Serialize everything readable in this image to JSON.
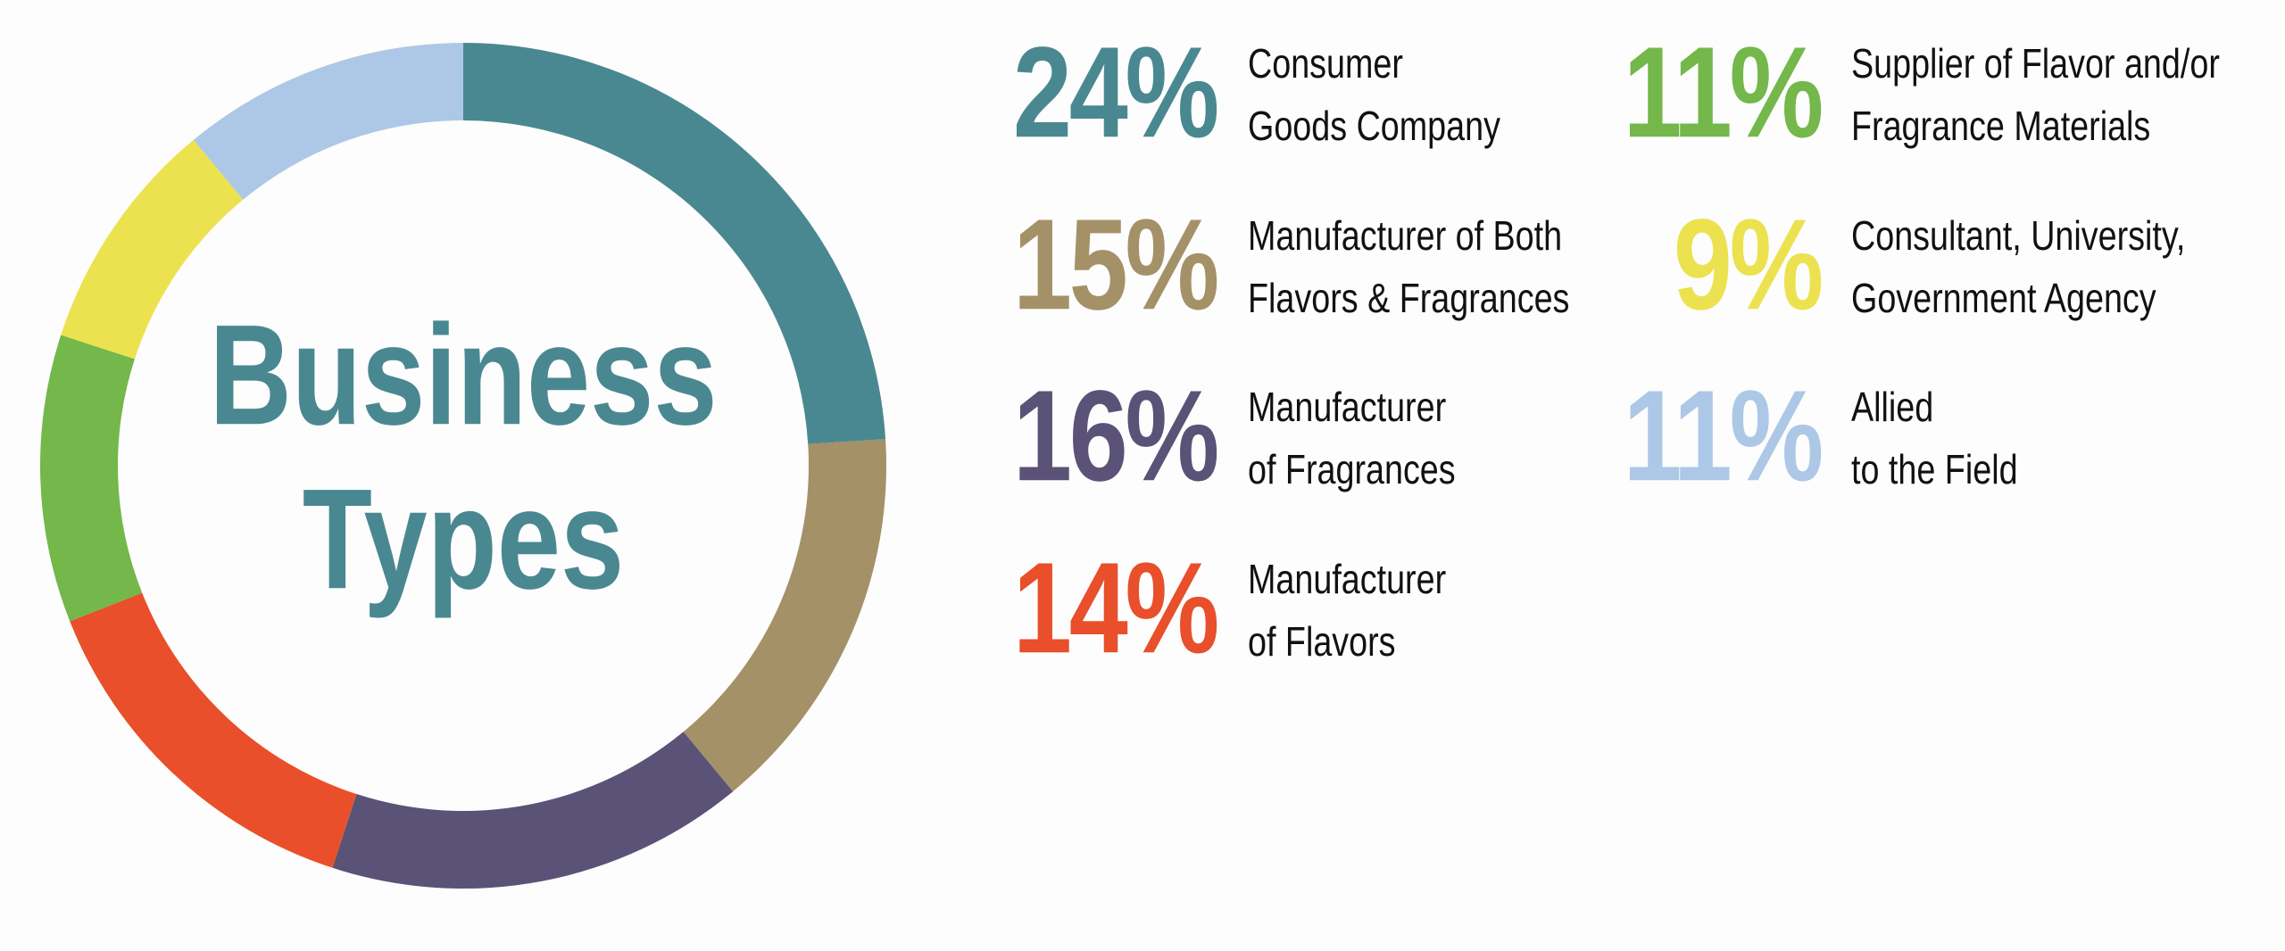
{
  "chart_data": {
    "type": "donut",
    "title": [
      "Business",
      "Types"
    ],
    "title_color": "#4a8891",
    "categories": [
      [
        "Consumer",
        "Goods Company"
      ],
      [
        "Manufacturer of Both",
        "Flavors & Fragrances"
      ],
      [
        "Manufacturer",
        "of Fragrances"
      ],
      [
        "Manufacturer",
        "of Flavors"
      ],
      [
        "Supplier of Flavor and/or",
        "Fragrance Materials"
      ],
      [
        "Consultant, University,",
        "Government Agency"
      ],
      [
        "Allied",
        "to the Field"
      ]
    ],
    "values": [
      24,
      15,
      16,
      14,
      11,
      9,
      11
    ],
    "value_labels": [
      "24%",
      "15%",
      "16%",
      "14%",
      "11%",
      "9%",
      "11%"
    ],
    "colors": [
      "#4a8891",
      "#a49168",
      "#5a5277",
      "#e84f2a",
      "#74b74b",
      "#ece24f",
      "#adc8e6"
    ]
  }
}
